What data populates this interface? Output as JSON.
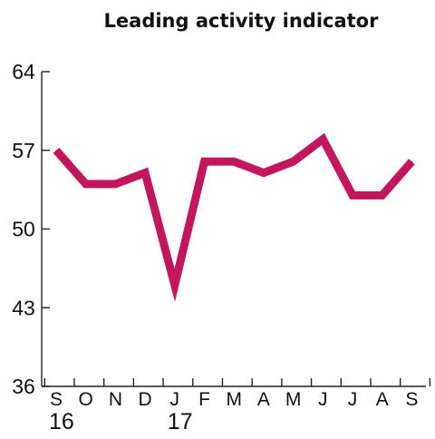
{
  "chart_data": {
    "type": "line",
    "title": "Leading activity indicator",
    "xlabel": "",
    "ylabel": "",
    "categories": [
      "S",
      "O",
      "N",
      "D",
      "J",
      "F",
      "M",
      "A",
      "M",
      "J",
      "J",
      "A",
      "S"
    ],
    "year_labels": [
      {
        "category_index": 0,
        "text": "16"
      },
      {
        "category_index": 4,
        "text": "17"
      }
    ],
    "series": [
      {
        "values": [
          57,
          54,
          54,
          55,
          45,
          56,
          56,
          55,
          56,
          58,
          53,
          53,
          56
        ],
        "color": "#c2185b"
      }
    ],
    "yticks": [
      36,
      43,
      50,
      57,
      64
    ],
    "ylim": [
      36,
      64
    ],
    "grid": false,
    "legend": "none"
  }
}
